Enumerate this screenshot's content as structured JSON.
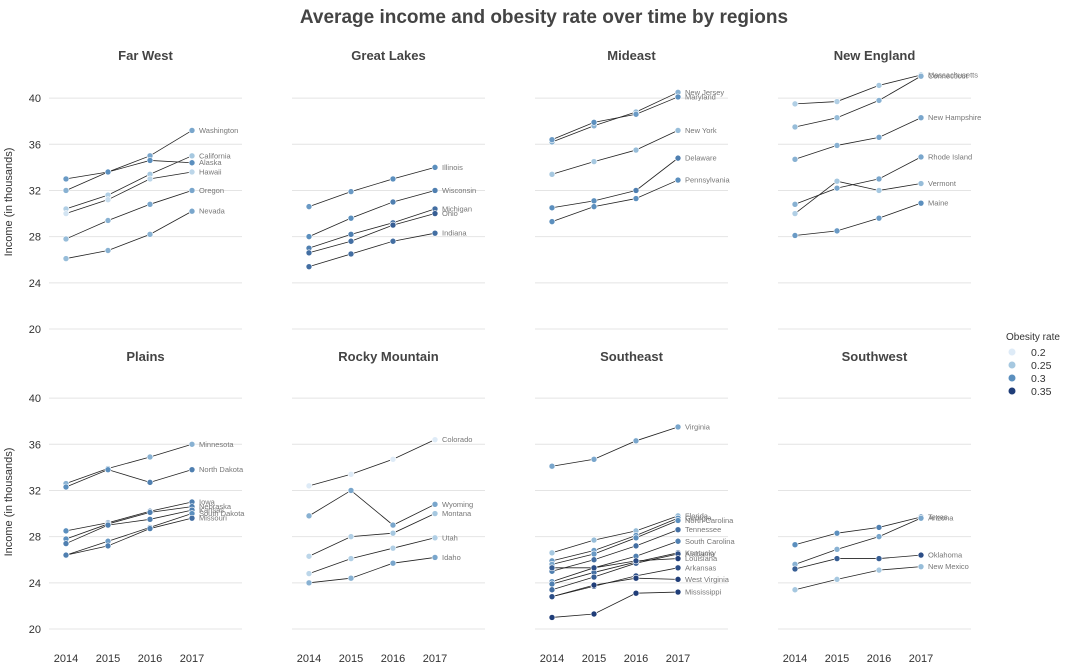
{
  "chart_data": {
    "type": "line",
    "title": "Average income and obesity rate over time by regions",
    "ylabel": "Income (in thousands)",
    "x": [
      2014,
      2015,
      2016,
      2017
    ],
    "x_ticks": [
      "2014",
      "2015",
      "2016",
      "2017"
    ],
    "y_ticks": [
      "20",
      "24",
      "28",
      "32",
      "36",
      "40"
    ],
    "ylim": [
      20,
      42
    ],
    "legend": {
      "title": "Obesity rate",
      "position": "right",
      "entries": [
        "0.2",
        "0.25",
        "0.3",
        "0.35"
      ],
      "colors": [
        "#deebf7",
        "#a6c8e0",
        "#5b8fbe",
        "#1f3d78"
      ],
      "range": [
        0.2,
        0.35
      ]
    },
    "grid": true,
    "facets": [
      {
        "name": "Far West",
        "series": [
          {
            "name": "Washington",
            "values": [
              32,
              33.6,
              35,
              37.2
            ],
            "obesity": [
              0.27,
              0.27,
              0.28,
              0.28
            ]
          },
          {
            "name": "California",
            "values": [
              30.4,
              31.6,
              33.4,
              35
            ],
            "obesity": [
              0.24,
              0.24,
              0.25,
              0.25
            ]
          },
          {
            "name": "Alaska",
            "values": [
              33,
              33.6,
              34.6,
              34.4
            ],
            "obesity": [
              0.29,
              0.3,
              0.3,
              0.3
            ]
          },
          {
            "name": "Hawaii",
            "values": [
              30,
              31.2,
              33,
              33.6
            ],
            "obesity": [
              0.21,
              0.22,
              0.23,
              0.23
            ]
          },
          {
            "name": "Oregon",
            "values": [
              27.8,
              29.4,
              30.8,
              32
            ],
            "obesity": [
              0.26,
              0.27,
              0.28,
              0.28
            ]
          },
          {
            "name": "Nevada",
            "values": [
              26.1,
              26.8,
              28.2,
              30.2
            ],
            "obesity": [
              0.26,
              0.27,
              0.27,
              0.28
            ]
          }
        ]
      },
      {
        "name": "Great Lakes",
        "series": [
          {
            "name": "Illinois",
            "values": [
              30.6,
              31.9,
              33,
              34
            ],
            "obesity": [
              0.29,
              0.29,
              0.3,
              0.3
            ]
          },
          {
            "name": "Wisconsin",
            "values": [
              28,
              29.6,
              31,
              32
            ],
            "obesity": [
              0.3,
              0.3,
              0.31,
              0.31
            ]
          },
          {
            "name": "Michigan",
            "values": [
              27,
              28.2,
              29.2,
              30.4
            ],
            "obesity": [
              0.31,
              0.31,
              0.32,
              0.32
            ]
          },
          {
            "name": "Ohio",
            "values": [
              26.6,
              27.6,
              29,
              30
            ],
            "obesity": [
              0.32,
              0.32,
              0.33,
              0.33
            ]
          },
          {
            "name": "Indiana",
            "values": [
              25.4,
              26.5,
              27.6,
              28.3
            ],
            "obesity": [
              0.32,
              0.32,
              0.32,
              0.32
            ]
          }
        ]
      },
      {
        "name": "Mideast",
        "series": [
          {
            "name": "New Jersey",
            "values": [
              36.2,
              37.6,
              38.8,
              40.5
            ],
            "obesity": [
              0.27,
              0.27,
              0.26,
              0.27
            ]
          },
          {
            "name": "Maryland",
            "values": [
              36.4,
              37.9,
              38.6,
              40.1
            ],
            "obesity": [
              0.29,
              0.3,
              0.29,
              0.3
            ]
          },
          {
            "name": "New York",
            "values": [
              33.4,
              34.5,
              35.5,
              37.2
            ],
            "obesity": [
              0.25,
              0.25,
              0.26,
              0.26
            ]
          },
          {
            "name": "Delaware",
            "values": [
              30.5,
              31.1,
              32,
              34.8
            ],
            "obesity": [
              0.3,
              0.3,
              0.31,
              0.31
            ]
          },
          {
            "name": "Pennsylvania",
            "values": [
              29.3,
              30.6,
              31.3,
              32.9
            ],
            "obesity": [
              0.3,
              0.3,
              0.3,
              0.3
            ]
          }
        ]
      },
      {
        "name": "New England",
        "series": [
          {
            "name": "Massachusetts",
            "values": [
              39.5,
              39.7,
              41.1,
              42
            ],
            "obesity": [
              0.24,
              0.24,
              0.25,
              0.25
            ]
          },
          {
            "name": "Connecticut",
            "values": [
              37.5,
              38.3,
              39.8,
              41.9
            ],
            "obesity": [
              0.26,
              0.26,
              0.27,
              0.27
            ]
          },
          {
            "name": "New Hampshire",
            "values": [
              34.7,
              35.9,
              36.6,
              38.3
            ],
            "obesity": [
              0.27,
              0.27,
              0.28,
              0.28
            ]
          },
          {
            "name": "Rhode Island",
            "values": [
              30.8,
              32.2,
              33,
              34.9
            ],
            "obesity": [
              0.27,
              0.28,
              0.28,
              0.28
            ]
          },
          {
            "name": "Vermont",
            "values": [
              30,
              32.8,
              32,
              32.6
            ],
            "obesity": [
              0.24,
              0.25,
              0.25,
              0.26
            ]
          },
          {
            "name": "Maine",
            "values": [
              28.1,
              28.5,
              29.6,
              30.9
            ],
            "obesity": [
              0.29,
              0.29,
              0.29,
              0.3
            ]
          }
        ]
      },
      {
        "name": "Plains",
        "series": [
          {
            "name": "Minnesota",
            "values": [
              32.6,
              33.9,
              34.9,
              36
            ],
            "obesity": [
              0.27,
              0.27,
              0.27,
              0.27
            ]
          },
          {
            "name": "North Dakota",
            "values": [
              32.3,
              33.8,
              32.7,
              33.8
            ],
            "obesity": [
              0.3,
              0.3,
              0.31,
              0.31
            ]
          },
          {
            "name": "Iowa",
            "values": [
              28.5,
              29.2,
              30.2,
              31
            ],
            "obesity": [
              0.3,
              0.31,
              0.31,
              0.31
            ]
          },
          {
            "name": "Nebraska",
            "values": [
              27.8,
              29.1,
              30.1,
              30.6
            ],
            "obesity": [
              0.3,
              0.3,
              0.31,
              0.31
            ]
          },
          {
            "name": "Kansas",
            "values": [
              27.4,
              29,
              29.5,
              30.3
            ],
            "obesity": [
              0.31,
              0.31,
              0.31,
              0.31
            ]
          },
          {
            "name": "South Dakota",
            "values": [
              26.4,
              27.6,
              28.8,
              30
            ],
            "obesity": [
              0.29,
              0.29,
              0.29,
              0.3
            ]
          },
          {
            "name": "Missouri",
            "values": [
              26.4,
              27.2,
              28.7,
              29.6
            ],
            "obesity": [
              0.31,
              0.31,
              0.31,
              0.32
            ]
          }
        ]
      },
      {
        "name": "Rocky Mountain",
        "series": [
          {
            "name": "Colorado",
            "values": [
              32.4,
              33.4,
              34.7,
              36.4
            ],
            "obesity": [
              0.2,
              0.2,
              0.2,
              0.2
            ]
          },
          {
            "name": "Wyoming",
            "values": [
              29.8,
              32,
              29,
              30.8
            ],
            "obesity": [
              0.27,
              0.28,
              0.28,
              0.28
            ]
          },
          {
            "name": "Montana",
            "values": [
              26.3,
              28,
              28.3,
              30
            ],
            "obesity": [
              0.23,
              0.24,
              0.25,
              0.25
            ]
          },
          {
            "name": "Utah",
            "values": [
              24.8,
              26.1,
              27,
              27.9
            ],
            "obesity": [
              0.23,
              0.24,
              0.24,
              0.24
            ]
          },
          {
            "name": "Idaho",
            "values": [
              24,
              24.4,
              25.7,
              26.2
            ],
            "obesity": [
              0.27,
              0.27,
              0.28,
              0.28
            ]
          }
        ]
      },
      {
        "name": "Southeast",
        "series": [
          {
            "name": "Virginia",
            "values": [
              34.1,
              34.7,
              36.3,
              37.5
            ],
            "obesity": [
              0.28,
              0.28,
              0.28,
              0.28
            ]
          },
          {
            "name": "Florida",
            "values": [
              26.6,
              27.7,
              28.5,
              29.8
            ],
            "obesity": [
              0.25,
              0.26,
              0.26,
              0.26
            ]
          },
          {
            "name": "Georgia",
            "values": [
              25.9,
              26.8,
              28.1,
              29.6
            ],
            "obesity": [
              0.29,
              0.29,
              0.3,
              0.3
            ]
          },
          {
            "name": "North Carolina",
            "values": [
              25.6,
              26.5,
              27.9,
              29.4
            ],
            "obesity": [
              0.28,
              0.29,
              0.3,
              0.3
            ]
          },
          {
            "name": "Tennessee",
            "values": [
              25,
              26,
              27.2,
              28.6
            ],
            "obesity": [
              0.31,
              0.32,
              0.32,
              0.32
            ]
          },
          {
            "name": "South Carolina",
            "values": [
              24.1,
              25.3,
              26.3,
              27.6
            ],
            "obesity": [
              0.3,
              0.31,
              0.31,
              0.31
            ]
          },
          {
            "name": "Kentucky",
            "values": [
              23.9,
              24.9,
              25.8,
              26.6
            ],
            "obesity": [
              0.31,
              0.32,
              0.33,
              0.33
            ]
          },
          {
            "name": "Alabama",
            "values": [
              23.4,
              24.5,
              25.7,
              26.5
            ],
            "obesity": [
              0.32,
              0.33,
              0.33,
              0.34
            ]
          },
          {
            "name": "Louisiana",
            "values": [
              25.3,
              25.3,
              25.9,
              26.1
            ],
            "obesity": [
              0.33,
              0.34,
              0.34,
              0.35
            ]
          },
          {
            "name": "Arkansas",
            "values": [
              22.8,
              23.7,
              24.6,
              25.3
            ],
            "obesity": [
              0.33,
              0.34,
              0.34,
              0.34
            ]
          },
          {
            "name": "West Virginia",
            "values": [
              22.8,
              23.8,
              24.4,
              24.3
            ],
            "obesity": [
              0.34,
              0.35,
              0.35,
              0.35
            ]
          },
          {
            "name": "Mississippi",
            "values": [
              21,
              21.3,
              23.1,
              23.2
            ],
            "obesity": [
              0.35,
              0.35,
              0.36,
              0.36
            ]
          }
        ]
      },
      {
        "name": "Southwest",
        "series": [
          {
            "name": "Texas",
            "values": [
              27.3,
              28.3,
              28.8,
              29.7
            ],
            "obesity": [
              0.3,
              0.3,
              0.31,
              0.31
            ]
          },
          {
            "name": "Arizona",
            "values": [
              25.6,
              26.9,
              28,
              29.6
            ],
            "obesity": [
              0.27,
              0.27,
              0.28,
              0.28
            ]
          },
          {
            "name": "Oklahoma",
            "values": [
              25.2,
              26.1,
              26.1,
              26.4
            ],
            "obesity": [
              0.33,
              0.33,
              0.33,
              0.34
            ]
          },
          {
            "name": "New Mexico",
            "values": [
              23.4,
              24.3,
              25.1,
              25.4
            ],
            "obesity": [
              0.25,
              0.25,
              0.25,
              0.26
            ]
          }
        ]
      }
    ]
  }
}
